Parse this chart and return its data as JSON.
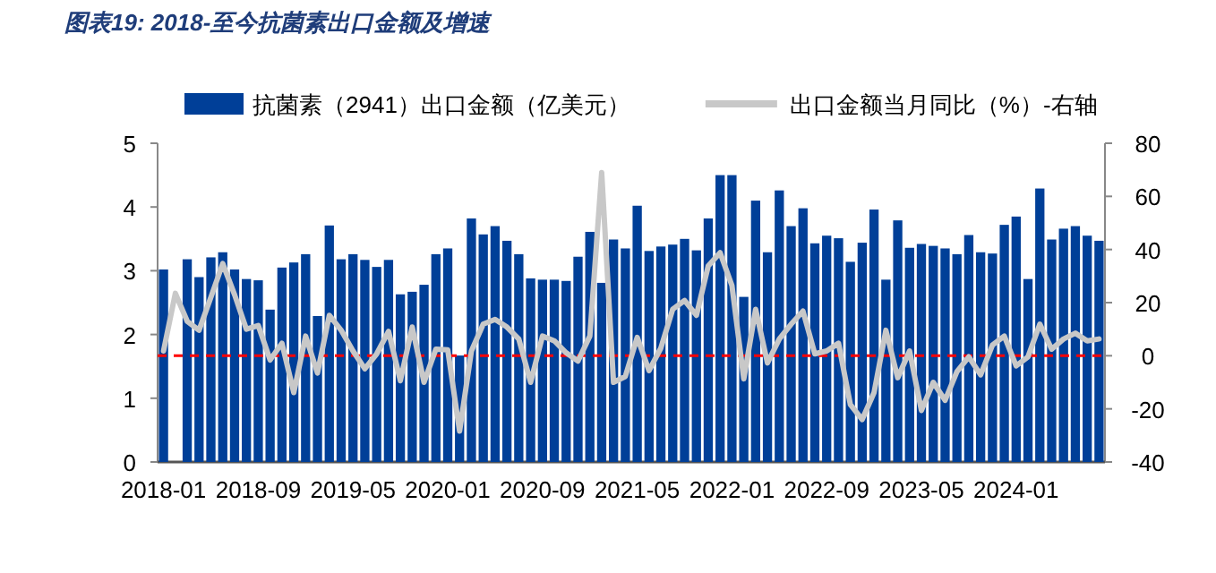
{
  "chart_data": {
    "type": "bar",
    "title": "图表19: 2018-至今抗菌素出口金额及增速",
    "categories": [
      "2018-01",
      null,
      null,
      null,
      null,
      null,
      null,
      null,
      "2018-09",
      null,
      null,
      null,
      null,
      null,
      null,
      null,
      "2019-05",
      null,
      null,
      null,
      null,
      null,
      null,
      null,
      "2020-01",
      null,
      null,
      null,
      null,
      null,
      null,
      null,
      "2020-09",
      null,
      null,
      null,
      null,
      null,
      null,
      null,
      "2021-05",
      null,
      null,
      null,
      null,
      null,
      null,
      null,
      "2022-01",
      null,
      null,
      null,
      null,
      null,
      null,
      null,
      "2022-09",
      null,
      null,
      null,
      null,
      null,
      null,
      null,
      "2023-05",
      null,
      null,
      null,
      null,
      null,
      null,
      null,
      "2024-01",
      null,
      null,
      null,
      null,
      null,
      null,
      null
    ],
    "series": [
      {
        "name": "抗菌素（2941）出口金额（亿美元）",
        "color": "#003f98",
        "values": [
          3.02,
          null,
          3.18,
          2.9,
          3.21,
          3.29,
          3.02,
          2.87,
          2.85,
          2.39,
          3.05,
          3.13,
          3.26,
          2.29,
          3.71,
          3.18,
          3.26,
          3.17,
          3.06,
          3.17,
          2.63,
          2.67,
          2.78,
          3.26,
          3.35,
          1.67,
          3.82,
          3.57,
          3.7,
          3.47,
          3.26,
          2.88,
          2.86,
          2.86,
          2.84,
          3.22,
          3.61,
          2.81,
          3.49,
          3.35,
          4.02,
          3.31,
          3.38,
          3.41,
          3.5,
          3.32,
          3.82,
          4.5,
          4.5,
          2.59,
          4.1,
          3.29,
          4.26,
          3.7,
          3.98,
          3.43,
          3.55,
          3.51,
          3.14,
          3.44,
          3.96,
          2.86,
          3.79,
          3.36,
          3.42,
          3.39,
          3.35,
          3.26,
          3.56,
          3.29,
          3.27,
          3.72,
          3.85,
          2.87,
          4.29,
          3.49,
          3.66,
          3.7,
          3.55,
          3.47
        ]
      },
      {
        "name": "出口金额当月同比（%）-右轴",
        "type": "line",
        "axis": "y2",
        "color": "#c8c8c8",
        "values": [
          1.8,
          23.5,
          13,
          9.6,
          22,
          34.7,
          23,
          10,
          11.4,
          -1.6,
          4.7,
          -13.9,
          7.4,
          -6.5,
          15.2,
          9.6,
          1.8,
          -4.9,
          0.7,
          9.2,
          -9.4,
          10.8,
          -10,
          2.5,
          2.2,
          -28.4,
          1.8,
          11.9,
          13.7,
          10.8,
          6.3,
          -10,
          7.4,
          5.6,
          1.1,
          -2.0,
          7.4,
          69,
          -10,
          -7.8,
          6.9,
          -5.6,
          2.9,
          17.5,
          20.8,
          15.2,
          33.8,
          38.8,
          26.4,
          -8.7,
          17.5,
          -2.7,
          6.3,
          11.9,
          16.8,
          0.7,
          1.8,
          4.7,
          -18.4,
          -24,
          -13.9,
          9.6,
          -8.3,
          1.8,
          -20.6,
          -10,
          -16.8,
          -6,
          -0.4,
          -7.2,
          4,
          7.4,
          -3.8,
          -0.4,
          11.9,
          2.5,
          6.3,
          8.5,
          5.6,
          6.3
        ]
      }
    ],
    "ylim": [
      0,
      5
    ],
    "yticks": [
      0,
      1,
      2,
      3,
      4,
      5
    ],
    "y2lim": [
      -40,
      80
    ],
    "y2ticks": [
      -40,
      -20,
      0,
      20,
      40,
      60,
      80
    ],
    "ref_lines": [
      {
        "axis": "y2",
        "value": 0,
        "color": "#ff0000",
        "line_style": "dashed"
      }
    ],
    "legend": "top"
  }
}
